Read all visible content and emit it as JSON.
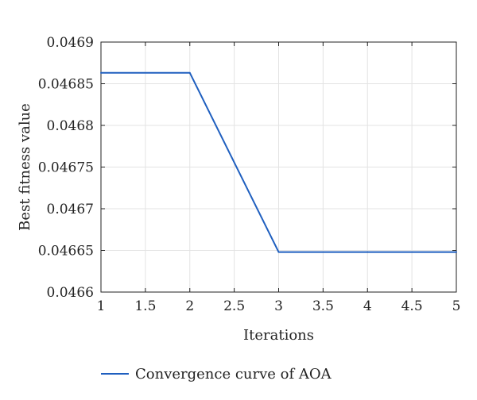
{
  "chart_data": {
    "type": "line",
    "xlabel": "Iterations",
    "ylabel": "Best fitness value",
    "xlim": [
      1,
      5
    ],
    "ylim": [
      0.0466,
      0.0469
    ],
    "x_ticks": [
      "1",
      "1.5",
      "2",
      "2.5",
      "3",
      "3.5",
      "4",
      "4.5",
      "5"
    ],
    "y_ticks": [
      "0.0466",
      "0.04665",
      "0.0467",
      "0.04675",
      "0.0468",
      "0.04685",
      "0.0469"
    ],
    "grid": true,
    "legend_position": "bottom",
    "series": [
      {
        "name": "Convergence curve of AOA",
        "color": "#1f5fbf",
        "x": [
          1,
          2,
          3,
          4,
          5
        ],
        "y": [
          0.046863,
          0.046863,
          0.046648,
          0.046648,
          0.046648
        ]
      }
    ]
  }
}
